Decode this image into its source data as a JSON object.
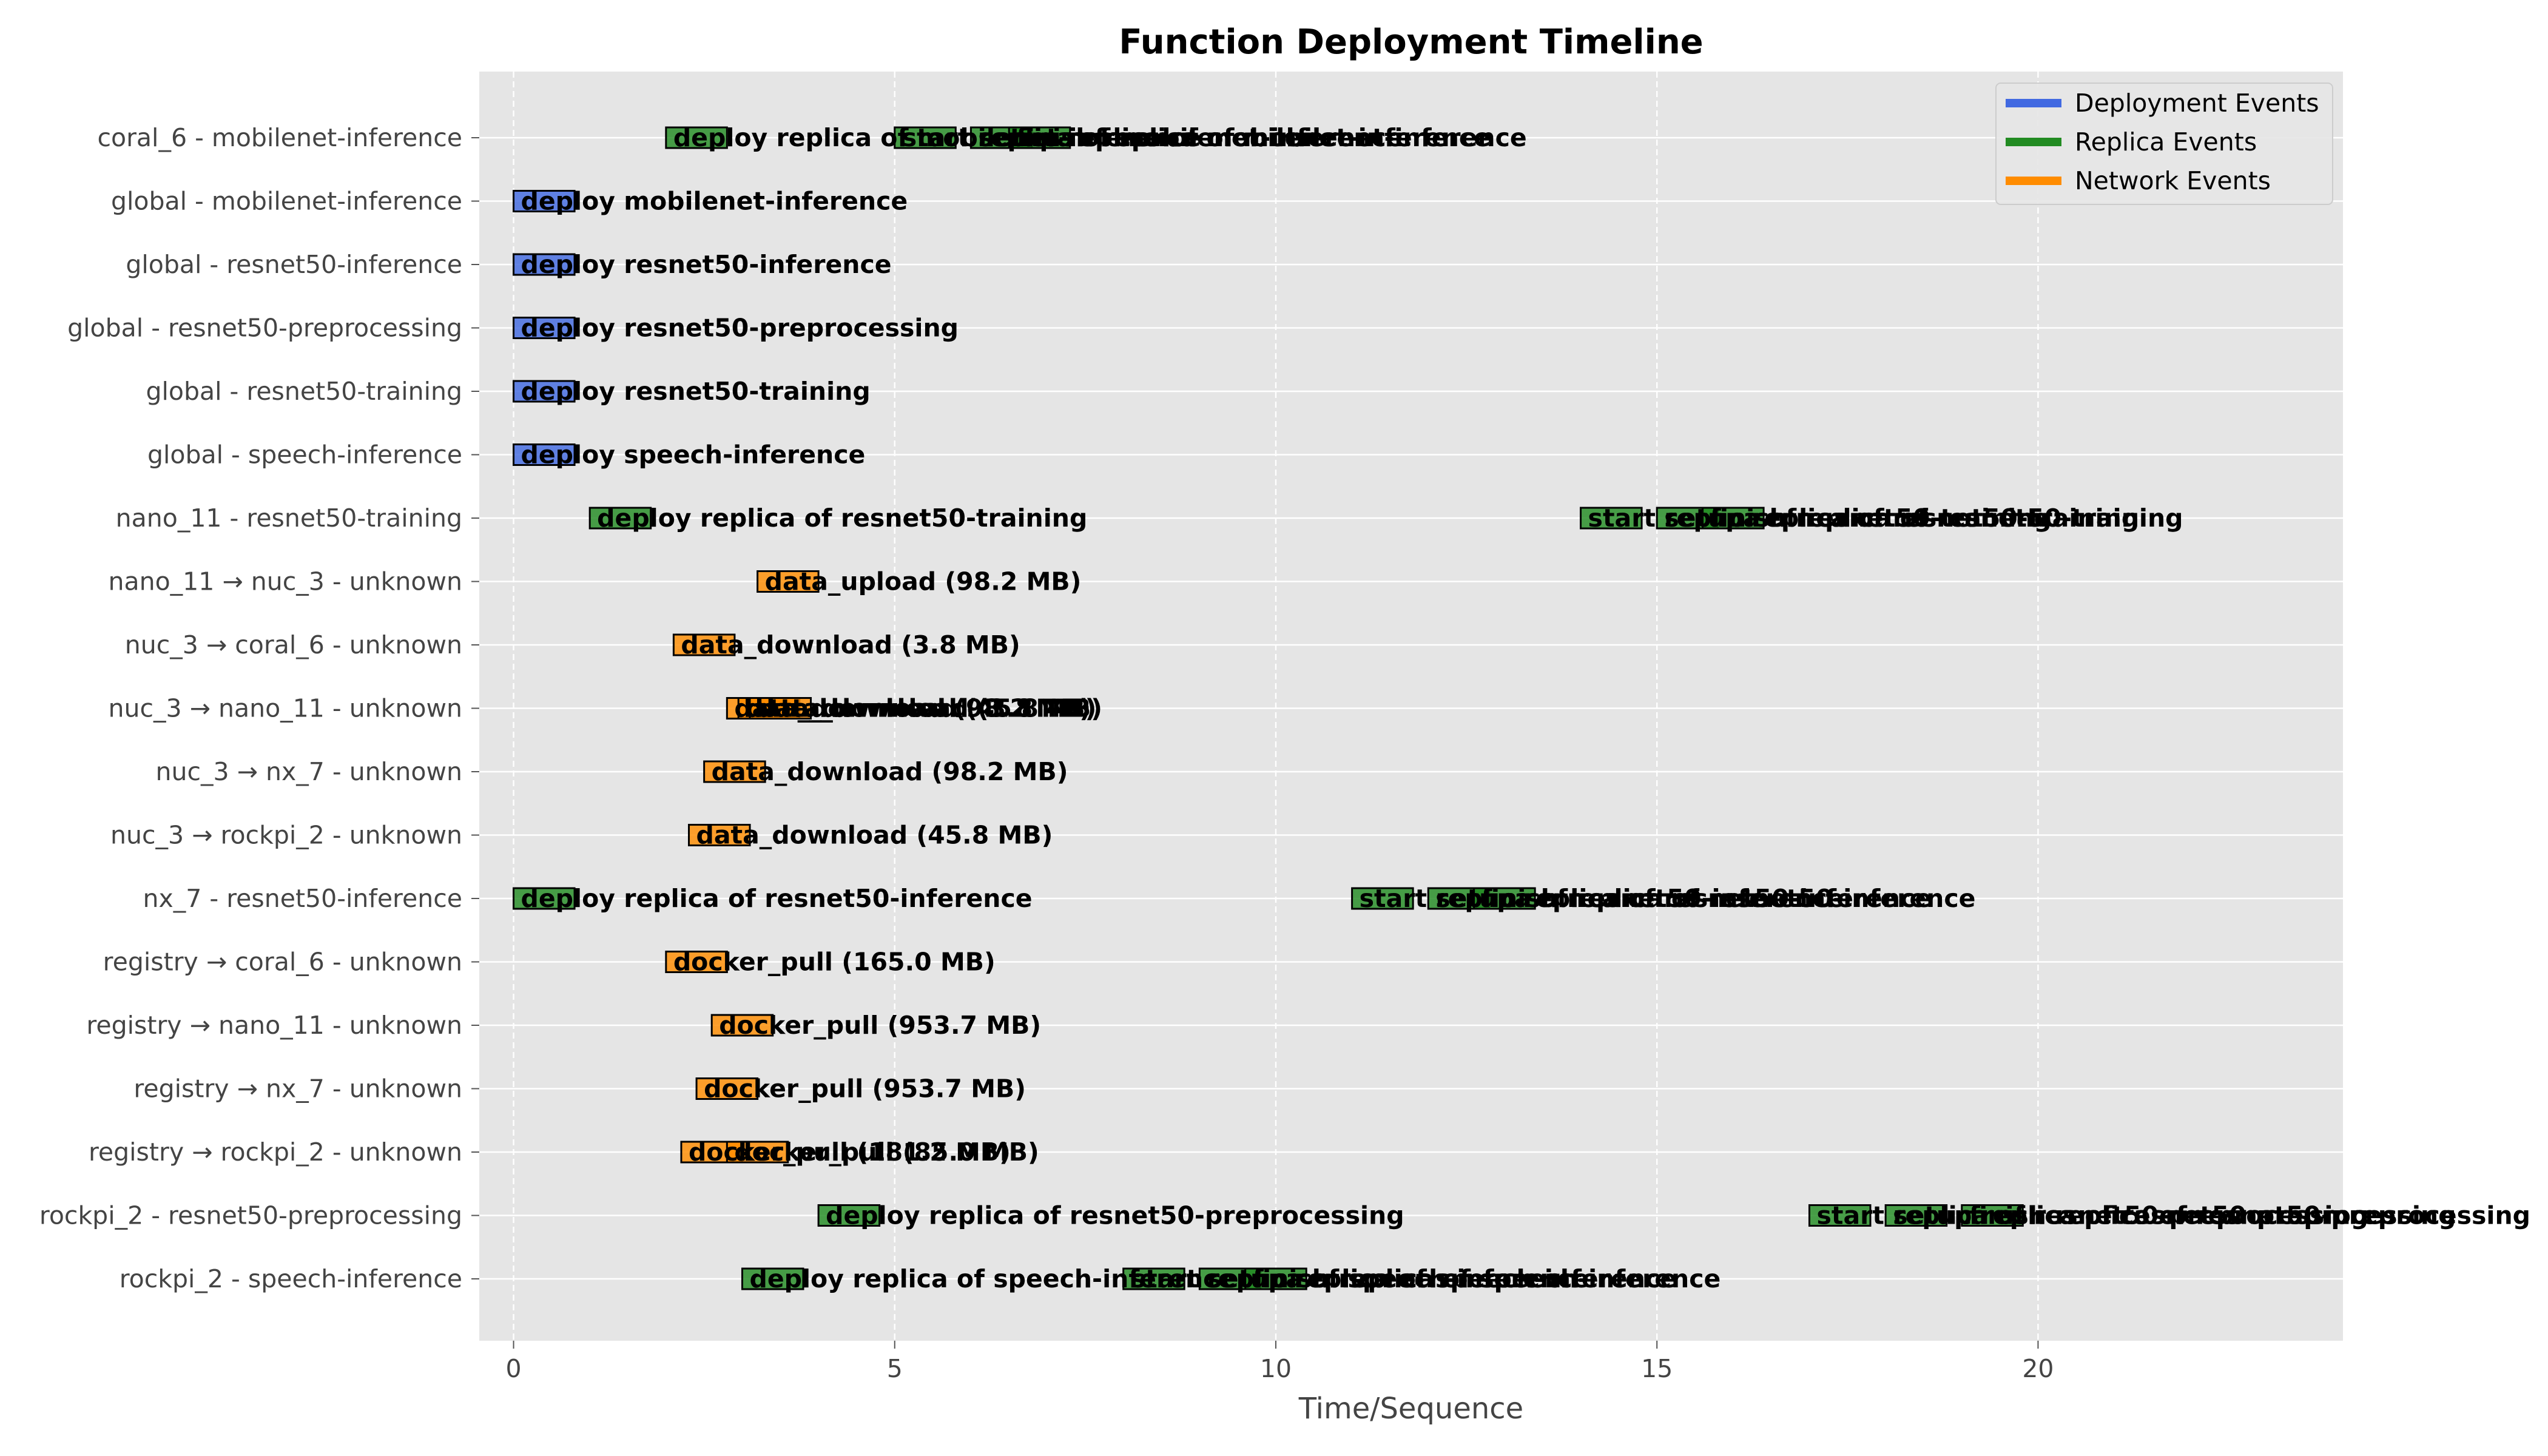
{
  "chart_data": {
    "type": "timeline",
    "title": "Function Deployment Timeline",
    "xlabel": "Time/Sequence",
    "ylabel": "",
    "xlim": [
      -0.45,
      24.0
    ],
    "xticks": [
      0,
      5,
      10,
      15,
      20
    ],
    "grid": true,
    "legend_position": "top-right",
    "categories": [
      "coral_6 - mobilenet-inference",
      "global - mobilenet-inference",
      "global - resnet50-inference",
      "global - resnet50-preprocessing",
      "global - resnet50-training",
      "global - speech-inference",
      "nano_11 - resnet50-training",
      "nano_11 → nuc_3 - unknown",
      "nuc_3 → coral_6 - unknown",
      "nuc_3 → nano_11 - unknown",
      "nuc_3 → nx_7 - unknown",
      "nuc_3 → rockpi_2 - unknown",
      "nx_7 - resnet50-inference",
      "registry → coral_6 - unknown",
      "registry → nano_11 - unknown",
      "registry → nx_7 - unknown",
      "registry → rockpi_2 - unknown",
      "rockpi_2 - resnet50-preprocessing",
      "rockpi_2 - speech-inference"
    ],
    "series": [
      {
        "name": "Deployment Events",
        "color": "#4169e1"
      },
      {
        "name": "Replica Events",
        "color": "#228b22"
      },
      {
        "name": "Network Events",
        "color": "#ff8c00"
      }
    ],
    "events": [
      {
        "row": 0,
        "start": 2.0,
        "duration": 0.8,
        "type": "replica",
        "label": "deploy replica of mobilenet-inference"
      },
      {
        "row": 0,
        "start": 5.0,
        "duration": 0.8,
        "type": "replica",
        "label": "start replica of mobilenet-inference"
      },
      {
        "row": 0,
        "start": 6.0,
        "duration": 0.8,
        "type": "replica",
        "label": "setup replica of mobilenet-inference"
      },
      {
        "row": 0,
        "start": 6.5,
        "duration": 0.8,
        "type": "replica",
        "label": "finish replica of mobilenet-inference"
      },
      {
        "row": 1,
        "start": 0.0,
        "duration": 0.8,
        "type": "deployment",
        "label": "deploy mobilenet-inference"
      },
      {
        "row": 2,
        "start": 0.0,
        "duration": 0.8,
        "type": "deployment",
        "label": "deploy resnet50-inference"
      },
      {
        "row": 3,
        "start": 0.0,
        "duration": 0.8,
        "type": "deployment",
        "label": "deploy resnet50-preprocessing"
      },
      {
        "row": 4,
        "start": 0.0,
        "duration": 0.8,
        "type": "deployment",
        "label": "deploy resnet50-training"
      },
      {
        "row": 5,
        "start": 0.0,
        "duration": 0.8,
        "type": "deployment",
        "label": "deploy speech-inference"
      },
      {
        "row": 6,
        "start": 1.0,
        "duration": 0.8,
        "type": "replica",
        "label": "deploy replica of resnet50-training"
      },
      {
        "row": 6,
        "start": 14.0,
        "duration": 0.8,
        "type": "replica",
        "label": "start replica of resnet50-training"
      },
      {
        "row": 6,
        "start": 15.0,
        "duration": 0.8,
        "type": "replica",
        "label": "setup replica of resnet50-training"
      },
      {
        "row": 6,
        "start": 15.6,
        "duration": 0.8,
        "type": "replica",
        "label": "finish replica of resnet50-training"
      },
      {
        "row": 7,
        "start": 3.2,
        "duration": 0.8,
        "type": "network",
        "label": "data_upload (98.2 MB)"
      },
      {
        "row": 8,
        "start": 2.1,
        "duration": 0.8,
        "type": "network",
        "label": "data_download (3.8 MB)"
      },
      {
        "row": 9,
        "start": 2.8,
        "duration": 0.8,
        "type": "network",
        "label": "data_download (98.2 MB)"
      },
      {
        "row": 9,
        "start": 2.95,
        "duration": 0.8,
        "type": "network",
        "label": "data_download (45.8 MB)"
      },
      {
        "row": 9,
        "start": 3.1,
        "duration": 0.8,
        "type": "network",
        "label": "data_download (3.8 MB)"
      },
      {
        "row": 10,
        "start": 2.5,
        "duration": 0.8,
        "type": "network",
        "label": "data_download (98.2 MB)"
      },
      {
        "row": 11,
        "start": 2.3,
        "duration": 0.8,
        "type": "network",
        "label": "data_download (45.8 MB)"
      },
      {
        "row": 12,
        "start": 0.0,
        "duration": 0.8,
        "type": "replica",
        "label": "deploy replica of resnet50-inference"
      },
      {
        "row": 12,
        "start": 11.0,
        "duration": 0.8,
        "type": "replica",
        "label": "start replica of resnet50-inference"
      },
      {
        "row": 12,
        "start": 12.0,
        "duration": 0.8,
        "type": "replica",
        "label": "setup replica of resnet50-inference"
      },
      {
        "row": 12,
        "start": 12.6,
        "duration": 0.8,
        "type": "replica",
        "label": "finish replica of resnet50-inference"
      },
      {
        "row": 13,
        "start": 2.0,
        "duration": 0.8,
        "type": "network",
        "label": "docker_pull (165.0 MB)"
      },
      {
        "row": 14,
        "start": 2.6,
        "duration": 0.8,
        "type": "network",
        "label": "docker_pull (953.7 MB)"
      },
      {
        "row": 15,
        "start": 2.4,
        "duration": 0.8,
        "type": "network",
        "label": "docker_pull (953.7 MB)"
      },
      {
        "row": 16,
        "start": 2.2,
        "duration": 0.8,
        "type": "network",
        "label": "docker_pull (181.2 MB)"
      },
      {
        "row": 16,
        "start": 2.8,
        "duration": 0.8,
        "type": "network",
        "label": "docker_pull (85.0 MB)"
      },
      {
        "row": 17,
        "start": 4.0,
        "duration": 0.8,
        "type": "replica",
        "label": "deploy replica of resnet50-preprocessing"
      },
      {
        "row": 17,
        "start": 17.0,
        "duration": 0.8,
        "type": "replica",
        "label": "start replica of resnet50-preprocessing"
      },
      {
        "row": 17,
        "start": 18.0,
        "duration": 0.8,
        "type": "replica",
        "label": "setup replica of resnet50-preprocessing"
      },
      {
        "row": 17,
        "start": 19.0,
        "duration": 0.8,
        "type": "replica",
        "label": "finish replica of resnet50-preprocessing"
      },
      {
        "row": 18,
        "start": 3.0,
        "duration": 0.8,
        "type": "replica",
        "label": "deploy replica of speech-inference"
      },
      {
        "row": 18,
        "start": 8.0,
        "duration": 0.8,
        "type": "replica",
        "label": "start replica of speech-inference"
      },
      {
        "row": 18,
        "start": 9.0,
        "duration": 0.8,
        "type": "replica",
        "label": "setup replica of speech-inference"
      },
      {
        "row": 18,
        "start": 9.6,
        "duration": 0.8,
        "type": "replica",
        "label": "finish replica of speech-inference"
      }
    ]
  }
}
